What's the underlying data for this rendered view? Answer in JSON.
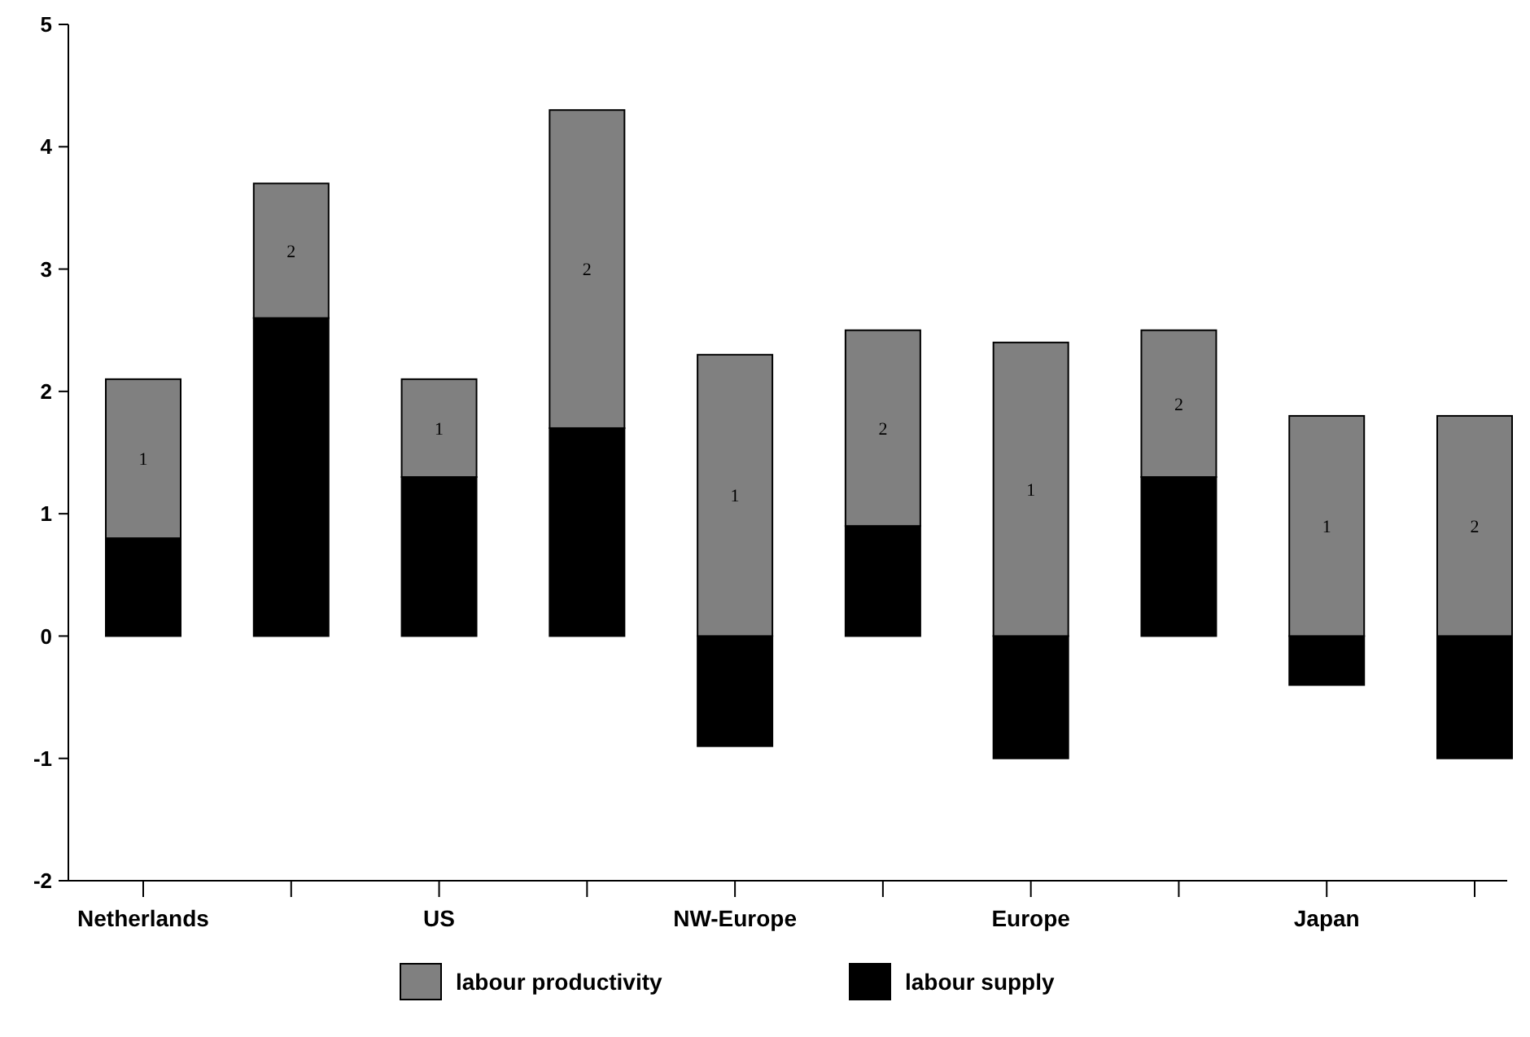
{
  "chart_data": {
    "type": "bar",
    "stacked": true,
    "categories": [
      "Netherlands",
      null,
      "US",
      null,
      "NW-Europe",
      null,
      "Europe",
      null,
      "Japan",
      null
    ],
    "series": [
      {
        "name": "labour supply",
        "color": "#000000",
        "values": [
          0.8,
          2.6,
          1.3,
          1.7,
          -0.9,
          0.9,
          -1.0,
          1.3,
          -0.4,
          -1.0
        ]
      },
      {
        "name": "labour productivity",
        "color": "#808080",
        "values": [
          1.3,
          1.1,
          0.8,
          2.6,
          2.3,
          1.6,
          2.4,
          1.2,
          1.8,
          1.8
        ]
      }
    ],
    "ylim": [
      -2,
      5
    ],
    "yticks": [
      -2,
      -1,
      0,
      1,
      2,
      3,
      4,
      5
    ],
    "grid": false,
    "legend": "bottom",
    "annotations": [
      "1",
      "2",
      "1",
      "2",
      "1",
      "2",
      "1",
      "2",
      "1",
      "2"
    ]
  }
}
